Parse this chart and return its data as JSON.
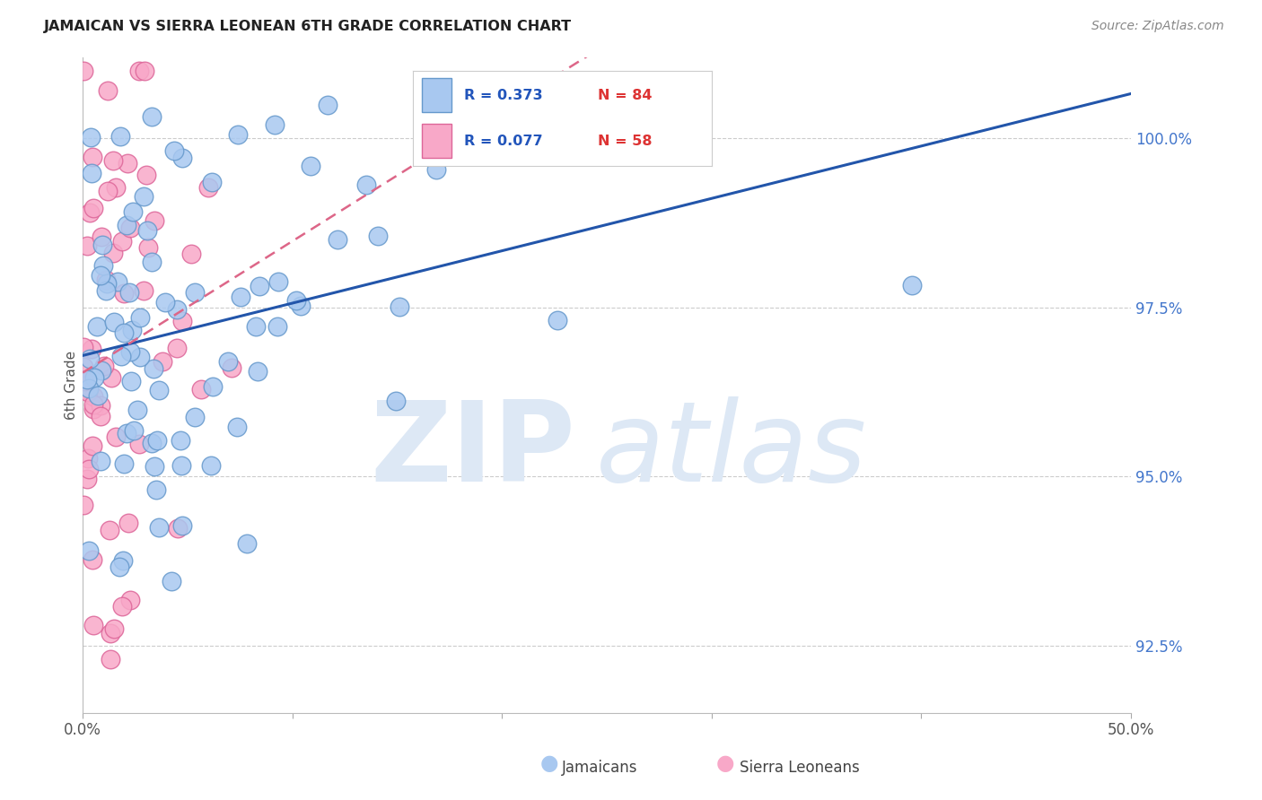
{
  "title": "JAMAICAN VS SIERRA LEONEAN 6TH GRADE CORRELATION CHART",
  "source": "Source: ZipAtlas.com",
  "ylabel": "6th Grade",
  "yticks": [
    92.5,
    95.0,
    97.5,
    100.0
  ],
  "ytick_labels": [
    "92.5%",
    "95.0%",
    "97.5%",
    "100.0%"
  ],
  "xlim": [
    0.0,
    50.0
  ],
  "ylim": [
    91.5,
    101.2
  ],
  "legend_R_blue": "R = 0.373",
  "legend_N_blue": "N = 84",
  "legend_R_pink": "R = 0.077",
  "legend_N_pink": "N = 58",
  "jam_face_color": "#a8c8f0",
  "jam_edge_color": "#6699cc",
  "sierra_face_color": "#f8a8c8",
  "sierra_edge_color": "#dd6699",
  "trendline_blue_color": "#2255aa",
  "trendline_pink_color": "#dd6688",
  "background_color": "#ffffff",
  "watermark_color": "#dde8f5",
  "title_color": "#222222",
  "source_color": "#888888",
  "ylabel_color": "#555555",
  "yticklabel_color": "#4477cc",
  "xticklabel_color": "#555555",
  "grid_color": "#cccccc",
  "legend_text_R_color": "#2255bb",
  "legend_text_N_color": "#dd3333",
  "seed": 77
}
